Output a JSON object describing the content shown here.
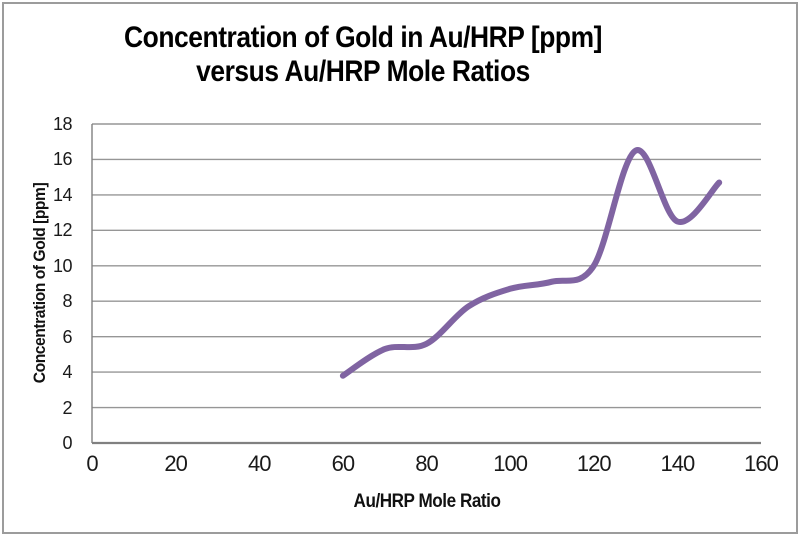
{
  "title": {
    "line1": "Concentration of Gold in Au/HRP [ppm]",
    "line2": "versus Au/HRP Mole Ratios"
  },
  "chart_data": {
    "type": "line",
    "title": "Concentration of Gold in Au/HRP [ppm] versus Au/HRP Mole Ratios",
    "xlabel": "Au/HRP Mole Ratio",
    "ylabel": "Concentration of Gold [ppm]",
    "x": [
      60,
      70,
      80,
      90,
      100,
      110,
      120,
      130,
      140,
      150
    ],
    "y": [
      3.8,
      5.3,
      5.6,
      7.7,
      8.7,
      9.1,
      10.0,
      16.5,
      12.5,
      14.7
    ],
    "xlim": [
      0,
      160
    ],
    "ylim": [
      0,
      18
    ],
    "x_ticks": [
      0,
      20,
      40,
      60,
      80,
      100,
      120,
      140,
      160
    ],
    "y_ticks": [
      0,
      2,
      4,
      6,
      8,
      10,
      12,
      14,
      16,
      18
    ],
    "grid": "horizontal",
    "legend": "none",
    "smooth": true,
    "line_color": "#8064A2"
  },
  "colors": {
    "line": "#8064A2",
    "gridline": "#969696",
    "axis": "#808080",
    "border": "#9c9c9c",
    "title_text": "#000000",
    "tick_text": "#1a1a1a",
    "background": "#ffffff"
  }
}
